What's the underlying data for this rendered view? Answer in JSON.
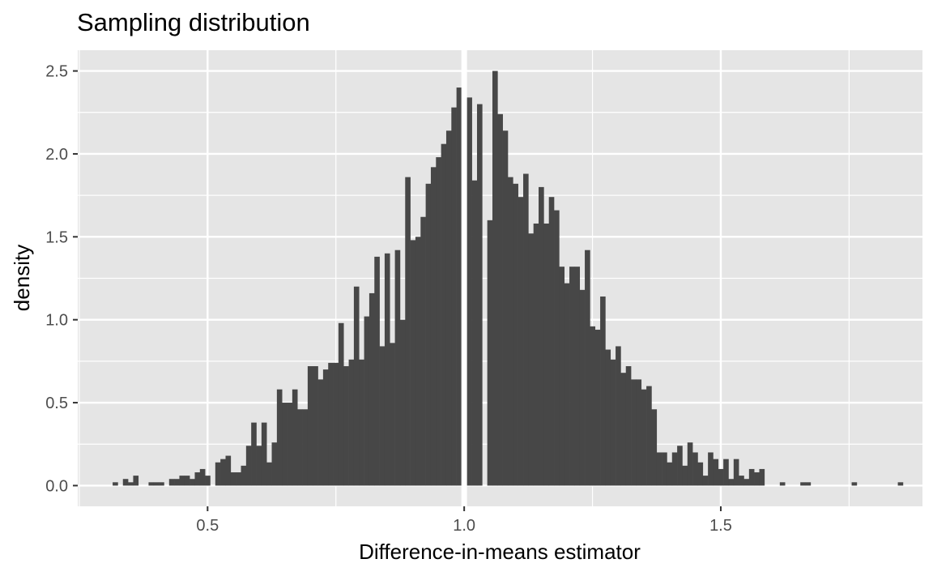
{
  "chart_data": {
    "type": "bar",
    "title": "Sampling distribution",
    "xlabel": "Difference-in-means estimator",
    "ylabel": "density",
    "xlim": [
      0.247,
      1.893
    ],
    "ylim": [
      -0.125,
      2.625
    ],
    "x_ticks": [
      {
        "value": 0.5,
        "label": "0.5"
      },
      {
        "value": 1.0,
        "label": "1.0"
      },
      {
        "value": 1.5,
        "label": "1.5"
      }
    ],
    "x_minor_ticks": [
      0.25,
      0.75,
      1.25,
      1.75
    ],
    "y_ticks": [
      {
        "value": 0.0,
        "label": "0.0"
      },
      {
        "value": 0.5,
        "label": "0.5"
      },
      {
        "value": 1.0,
        "label": "1.0"
      },
      {
        "value": 1.5,
        "label": "1.5"
      },
      {
        "value": 2.0,
        "label": "2.0"
      },
      {
        "value": 2.5,
        "label": "2.5"
      }
    ],
    "y_minor_ticks": [
      0.25,
      0.75,
      1.25,
      1.75,
      2.25
    ],
    "grid": true,
    "bar_color": "#474747",
    "panel_color": "#e5e5e5",
    "grid_color": "#ffffff",
    "bin_width": 0.01,
    "bin_start": 0.315,
    "densities": [
      0.02,
      0,
      0.04,
      0.02,
      0.06,
      0,
      0,
      0.02,
      0.02,
      0.02,
      0,
      0.04,
      0.04,
      0.06,
      0.06,
      0.04,
      0.08,
      0.1,
      0.06,
      0,
      0.14,
      0.16,
      0.18,
      0.08,
      0.08,
      0.12,
      0.24,
      0.38,
      0.24,
      0.38,
      0.14,
      0.26,
      0.58,
      0.5,
      0.5,
      0.58,
      0.46,
      0.46,
      0.72,
      0.72,
      0.64,
      0.7,
      0.74,
      0.74,
      0.98,
      0.72,
      0.76,
      1.2,
      0.76,
      1.02,
      1.16,
      1.38,
      0.84,
      1.4,
      0.86,
      1.42,
      1.0,
      1.86,
      1.48,
      1.5,
      1.62,
      1.82,
      1.92,
      1.98,
      2.06,
      2.14,
      2.28,
      2.4,
      2.18,
      2.34,
      1.84,
      2.3,
      0,
      1.6,
      2.5,
      2.24,
      2.14,
      1.86,
      1.82,
      1.74,
      1.88,
      1.52,
      1.58,
      1.8,
      1.58,
      1.74,
      1.66,
      1.32,
      1.22,
      1.32,
      1.32,
      1.18,
      1.42,
      0.96,
      0.94,
      1.14,
      0.82,
      0.76,
      0.84,
      0.68,
      0.72,
      0.64,
      0.64,
      0.58,
      0.6,
      0.46,
      0.2,
      0.2,
      0.14,
      0.2,
      0.24,
      0.12,
      0.26,
      0.2,
      0.14,
      0.06,
      0.2,
      0.16,
      0.1,
      0.16,
      0.04,
      0.16,
      0.06,
      0.04,
      0.1,
      0.08,
      0.1,
      0,
      0,
      0,
      0.02,
      0,
      0,
      0,
      0.02,
      0.02,
      0,
      0,
      0,
      0,
      0,
      0,
      0,
      0,
      0.02,
      0,
      0,
      0,
      0,
      0,
      0,
      0,
      0,
      0.02,
      0,
      0,
      0,
      0,
      0,
      0,
      0,
      0,
      0,
      0,
      0.02
    ],
    "reference_line": {
      "x": 1.0,
      "color": "#ffffff"
    }
  }
}
